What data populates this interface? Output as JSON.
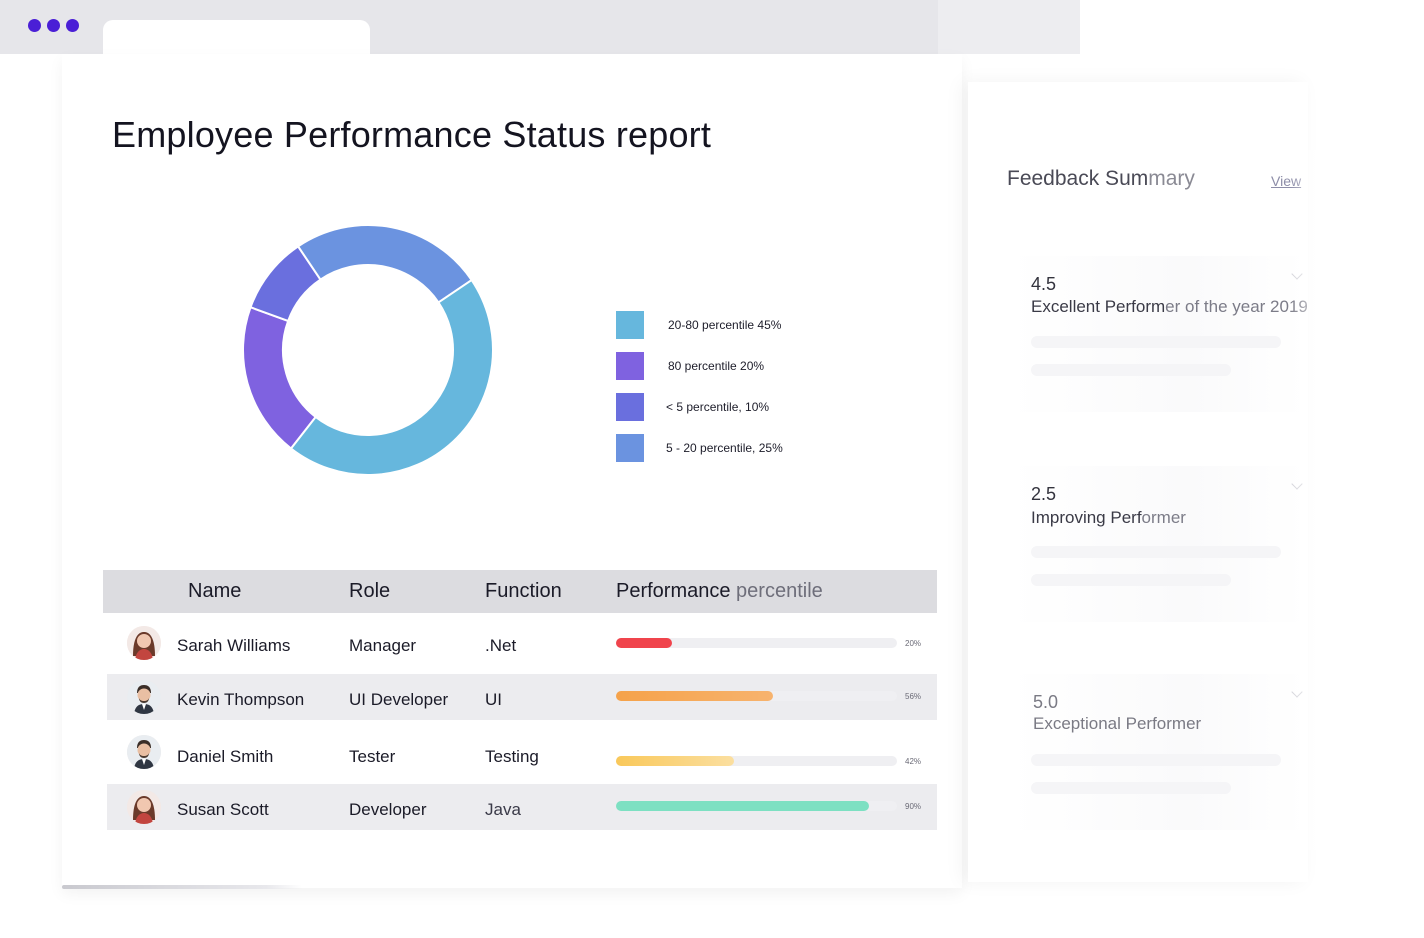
{
  "window": {
    "title": "Employee Performance Status report"
  },
  "chart_data": {
    "type": "pie",
    "title": "",
    "slices": [
      {
        "label": "20-80 percentile 45%",
        "value": 45,
        "color": "#66b7dd"
      },
      {
        "label": "80 percentile 20%",
        "value": 20,
        "color": "#7f62e0"
      },
      {
        "label": "< 5 percentile, 10%",
        "value": 10,
        "color": "#6a6fde"
      },
      {
        "label": "5 - 20 percentile, 25%",
        "value": 25,
        "color": "#6b93e0"
      }
    ],
    "donut": true,
    "legend_position": "right"
  },
  "table": {
    "headers": {
      "name": "Name",
      "role": "Role",
      "function": "Function",
      "performance_main": "Performance",
      "performance_tail": " percentile"
    },
    "rows": [
      {
        "name": "Sarah Williams",
        "role": "Manager",
        "function": ".Net",
        "percent": 20,
        "percent_label": "20%",
        "bar_color_from": "#f0444c",
        "bar_color_to": "#f0444c",
        "avatar": "avatar-woman"
      },
      {
        "name": "Kevin Thompson",
        "role": "UI Developer",
        "function": "UI",
        "percent": 56,
        "percent_label": "56%",
        "bar_color_from": "#f5a24a",
        "bar_color_to": "#f7b36e",
        "avatar": "avatar-man"
      },
      {
        "name": "Daniel Smith",
        "role": "Tester",
        "function": "Testing",
        "percent": 42,
        "percent_label": "42%",
        "bar_color_from": "#f9c85a",
        "bar_color_to": "#fbdfa0",
        "avatar": "avatar-man"
      },
      {
        "name": "Susan Scott",
        "role": "Developer",
        "function": "Java",
        "percent": 90,
        "percent_label": "90%",
        "bar_color_from": "#7de0c2",
        "bar_color_to": "#7de0c2",
        "avatar": "avatar-woman"
      }
    ]
  },
  "feedback": {
    "title_main": "Feedback Sum",
    "title_tail": "mary",
    "view_label": "View",
    "cards": [
      {
        "score": "4.5",
        "label_main": "Excellent Perform",
        "label_tail": "er of the year 2019"
      },
      {
        "score": "2.5",
        "label_main": "Improving Perf",
        "label_tail": "ormer"
      },
      {
        "score": "5.0",
        "label_main": "Exceptional Performer",
        "label_tail": ""
      }
    ]
  },
  "colors": {
    "accent": "#4a1fd6"
  }
}
